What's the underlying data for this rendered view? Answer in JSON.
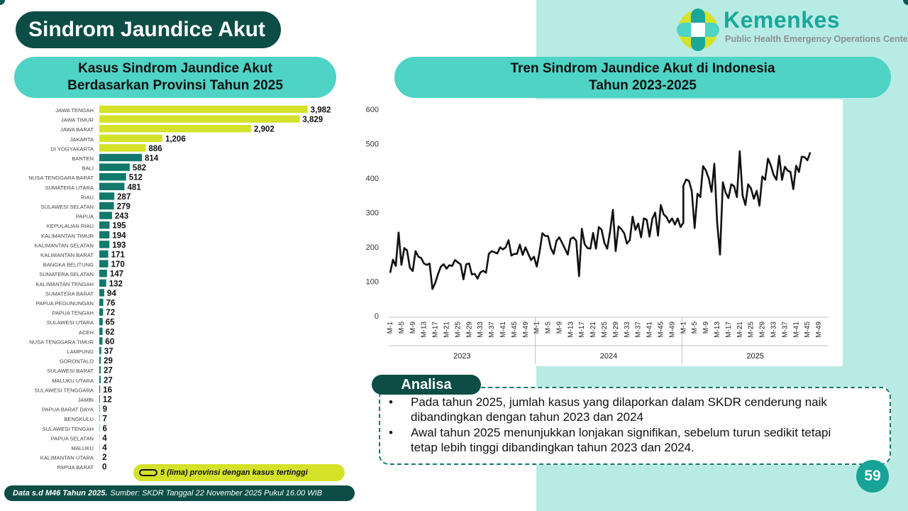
{
  "page_title": "Sindrom Jaundice Akut",
  "logo": {
    "name": "Kemenkes",
    "subtitle": "Public Health Emergency Operations Center"
  },
  "left_section": {
    "title_line1": "Kasus Sindrom Jaundice Akut",
    "title_line2": "Berdasarkan Provinsi Tahun 2025"
  },
  "right_section": {
    "title_line1": "Tren Sindrom Jaundice Akut di Indonesia",
    "title_line2": "Tahun 2023-2025"
  },
  "legend": {
    "text": "5 (lima) provinsi dengan kasus tertinggi"
  },
  "source": {
    "bold": "Data s.d M46 Tahun 2025.",
    "text": "Sumber: SKDR Tanggal 22 November 2025 Pukul 16.00 WIB"
  },
  "analysis": {
    "tag": "Analisa",
    "bullet": "•",
    "items": [
      {
        "line1": "Pada tahun 2025, jumlah kasus yang dilaporkan dalam SKDR cenderung naik",
        "line2": "dibandingkan dengan tahun 2023 dan 2024"
      },
      {
        "line1": "Awal tahun 2025 menunjukkan lonjakan signifikan, sebelum turun sedikit tetapi",
        "line2": "tetap lebih tinggi dibandingkan tahun 2023 dan 2024."
      }
    ]
  },
  "page_number": "59",
  "colors": {
    "dark_teal": "#0c4d45",
    "teal": "#4ed3c5",
    "bar_teal": "#12796d",
    "bar_lime": "#d4e22a",
    "page_bg_right": "#b9ebe5"
  },
  "chart_data": [
    {
      "type": "bar",
      "orientation": "horizontal",
      "categories": [
        "JAWA TENGAH",
        "JAWA TIMUR",
        "JAWA BARAT",
        "JAKARTA",
        "DI YOGYAKARTA",
        "BANTEN",
        "BALI",
        "NUSA TENGGARA BARAT",
        "SUMATERA UTARA",
        "RIAU",
        "SULAWESI SELATAN",
        "PAPUA",
        "KEPULAUAN RIAU",
        "KALIMANTAN TIMUR",
        "KALIMANTAN SELATAN",
        "KALIMANTAN BARAT",
        "BANGKA BELITUNG",
        "SUMATERA SELATAN",
        "KALIMANTAN TENGAH",
        "SUMATERA BARAT",
        "PAPUA PEGUNUNGAN",
        "PAPUA TENGAH",
        "SULAWESI UTARA",
        "ACEH",
        "NUSA TENGGARA TIMUR",
        "LAMPUNG",
        "GORONTALO",
        "SULAWESI BARAT",
        "MALUKU UTARA",
        "SULAWESI TENGGARA",
        "JAMBI",
        "PAPUA BARAT DAYA",
        "BENGKULU",
        "SULAWESI TENGAH",
        "PAPUA SELATAN",
        "MALUKU",
        "KALIMANTAN UTARA",
        "PAPUA BARAT"
      ],
      "values": [
        3982,
        3829,
        2902,
        1206,
        886,
        814,
        582,
        512,
        481,
        287,
        279,
        243,
        195,
        194,
        193,
        171,
        170,
        147,
        132,
        94,
        76,
        72,
        65,
        62,
        60,
        37,
        29,
        27,
        27,
        16,
        12,
        9,
        7,
        6,
        4,
        4,
        2,
        0
      ],
      "value_labels": [
        "3,982",
        "3,829",
        "2,902",
        "1,206",
        "886",
        "814",
        "582",
        "512",
        "481",
        "287",
        "279",
        "243",
        "195",
        "194",
        "193",
        "171",
        "170",
        "147",
        "132",
        "94",
        "76",
        "72",
        "65",
        "62",
        "60",
        "37",
        "29",
        "27",
        "27",
        "16",
        "12",
        "9",
        "7",
        "6",
        "4",
        "4",
        "2",
        "0"
      ],
      "highlight_top": 5,
      "xlim": [
        0,
        4000
      ]
    },
    {
      "type": "line",
      "ylim": [
        0,
        600
      ],
      "yticks": [
        0,
        100,
        200,
        300,
        400,
        500,
        600
      ],
      "years": [
        "2023",
        "2024",
        "2025"
      ],
      "x_tick_labels": [
        "M-1",
        "M-5",
        "M-9",
        "M-13",
        "M-17",
        "M-21",
        "M-25",
        "M-29",
        "M-33",
        "M-37",
        "M-41",
        "M-45",
        "M-49"
      ],
      "x_tick_labels_2025": [
        "M-1",
        "M-5",
        "M-9",
        "M-13",
        "M-17",
        "M-21",
        "M-25",
        "M-29",
        "M-33",
        "M-37",
        "M-41",
        "M-45",
        "M-49"
      ],
      "series": [
        {
          "values": [
            125,
            163,
            145,
            242,
            148,
            197,
            190,
            140,
            130,
            188,
            172,
            168,
            152,
            148,
            152,
            78,
            96,
            122,
            143,
            150,
            137,
            147,
            145,
            162,
            155,
            150,
            106,
            150,
            152,
            120,
            122,
            108,
            126,
            131,
            125,
            180,
            188,
            185,
            181,
            199,
            193,
            199,
            220,
            175,
            180,
            180,
            207,
            177,
            199,
            180,
            162,
            172,
            143
          ]
        },
        {
          "values": [
            143,
            185,
            240,
            232,
            232,
            197,
            180,
            218,
            228,
            212,
            195,
            178,
            223,
            228,
            218,
            115,
            253,
            208,
            197,
            195,
            241,
            195,
            258,
            250,
            212,
            195,
            245,
            308,
            188,
            260,
            252,
            240,
            210,
            220,
            288,
            250,
            268,
            228,
            283,
            279,
            230,
            282,
            300,
            233,
            322,
            295,
            287,
            271,
            283,
            265,
            283,
            258,
            270
          ]
        },
        {
          "values": [
            378,
            396,
            392,
            362,
            255,
            355,
            345,
            435,
            422,
            400,
            360,
            442,
            270,
            178,
            388,
            358,
            342,
            382,
            376,
            345,
            478,
            350,
            322,
            382,
            370,
            340,
            363,
            320,
            405,
            395,
            457,
            438,
            410,
            395,
            465,
            395,
            433,
            422,
            418,
            368,
            436,
            418,
            462,
            461,
            452,
            475
          ]
        }
      ]
    }
  ]
}
